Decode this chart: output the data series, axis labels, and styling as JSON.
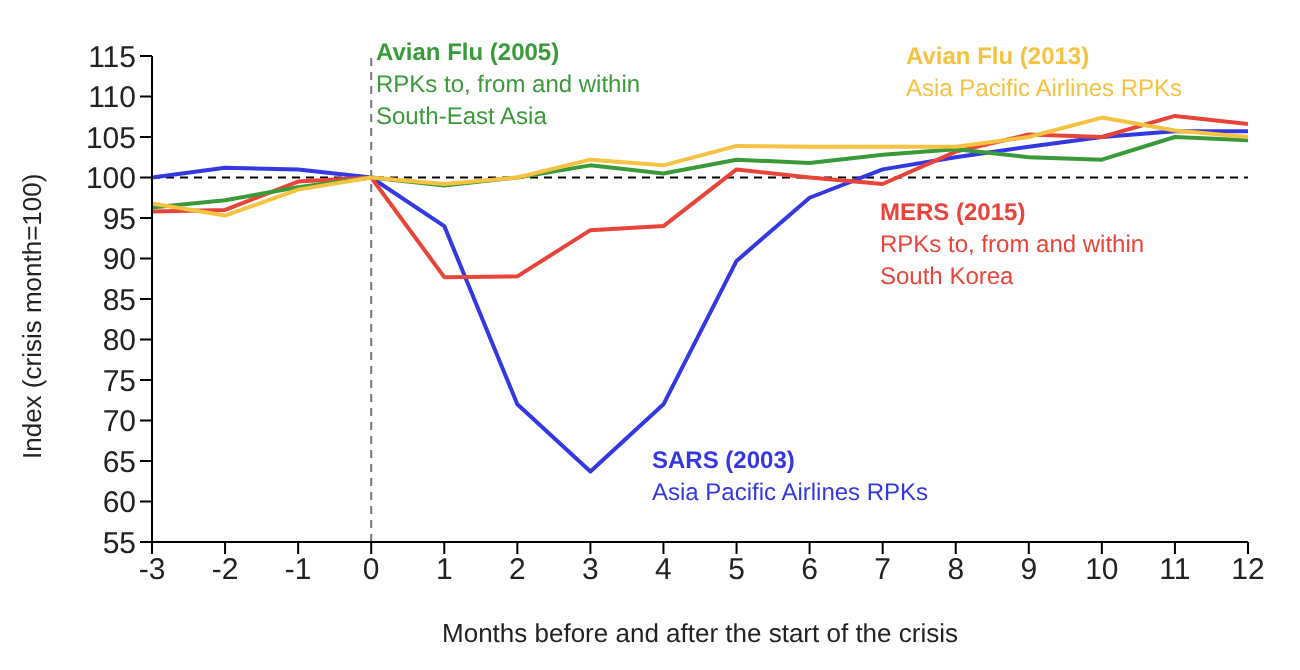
{
  "chart_data": {
    "type": "line",
    "xlabel": "Months before and after the start of the crisis",
    "ylabel": "Index (crisis month=100)",
    "x": [
      -3,
      -2,
      -1,
      0,
      1,
      2,
      3,
      4,
      5,
      6,
      7,
      8,
      9,
      10,
      11,
      12
    ],
    "series": [
      {
        "name": "SARS (2003)",
        "color": "#3338e0",
        "values": [
          100,
          101.2,
          101,
          100,
          94,
          72,
          63.7,
          72,
          89.7,
          97.5,
          101,
          102.5,
          103.8,
          105,
          105.7,
          105.7
        ]
      },
      {
        "name": "MERS (2015)",
        "color": "#e8443a",
        "values": [
          95.8,
          96,
          99.5,
          100,
          87.7,
          87.8,
          93.5,
          94,
          101,
          100,
          99.2,
          103.2,
          105.3,
          105,
          107.6,
          106.6
        ]
      },
      {
        "name": "Avian Flu (2005)",
        "color": "#3a9a3a",
        "values": [
          96.3,
          97.2,
          98.8,
          100,
          99,
          100,
          101.5,
          100.5,
          102.2,
          101.8,
          102.8,
          103.5,
          102.5,
          102.2,
          105,
          104.6
        ]
      },
      {
        "name": "Avian Flu (2013)",
        "color": "#f5c242",
        "values": [
          96.8,
          95.3,
          98.5,
          100,
          99.2,
          100,
          102.2,
          101.5,
          103.9,
          103.8,
          103.8,
          103.8,
          105,
          107.4,
          105.8,
          105
        ]
      }
    ],
    "annotations": [
      "Asia Pacific Airlines RPKs",
      "RPKs to, from and within South Korea",
      "RPKs to, from and within South-East Asia",
      "Asia Pacific Airlines RPKs"
    ],
    "xlim": [
      -3,
      12
    ],
    "xticks": [
      -3,
      -2,
      -1,
      0,
      1,
      2,
      3,
      4,
      5,
      6,
      7,
      8,
      9,
      10,
      11,
      12
    ],
    "ylim": [
      55,
      115
    ],
    "yticks": [
      55,
      60,
      65,
      70,
      75,
      80,
      85,
      90,
      95,
      100,
      105,
      110,
      115
    ],
    "ref_lines": [
      {
        "axis": "y",
        "value": 100,
        "color": "#000000",
        "line_style": "dashed"
      },
      {
        "axis": "x",
        "value": 0,
        "color": "#777777",
        "line_style": "dashed"
      }
    ],
    "grid": false,
    "legend": false,
    "marker": "none",
    "line_style": "solid"
  }
}
